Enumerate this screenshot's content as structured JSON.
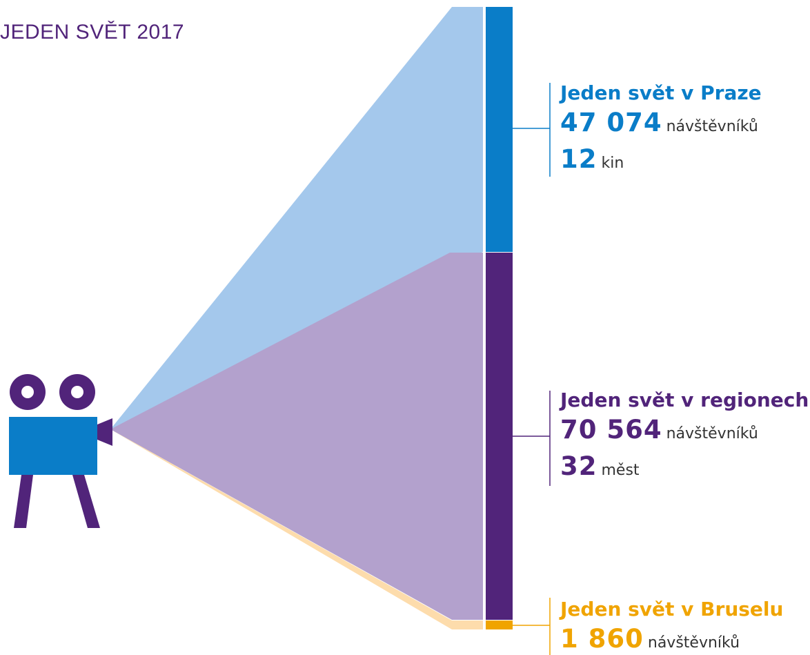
{
  "title": "JEDEN SVĚT 2017",
  "colors": {
    "praha": "#0a7dc8",
    "praha_light": "#a4c8ec",
    "regiony": "#51247a",
    "regiony_light": "#b3a1cd",
    "brusel": "#f0a400",
    "brusel_light": "#fddcac"
  },
  "sections": {
    "praha": {
      "name": "Jeden svět v Praze",
      "visitors": "47 074",
      "visitors_unit": "návštěvníků",
      "count": "12",
      "count_unit": "kin"
    },
    "regiony": {
      "name": "Jeden svět v regionech",
      "visitors": "70 564",
      "visitors_unit": "návštěvníků",
      "count": "32",
      "count_unit": "měst"
    },
    "brusel": {
      "name": "Jeden svět v Bruselu",
      "visitors": "1 860",
      "visitors_unit": "návštěvníků"
    }
  },
  "icons": {
    "projector": "film-camera-icon"
  }
}
